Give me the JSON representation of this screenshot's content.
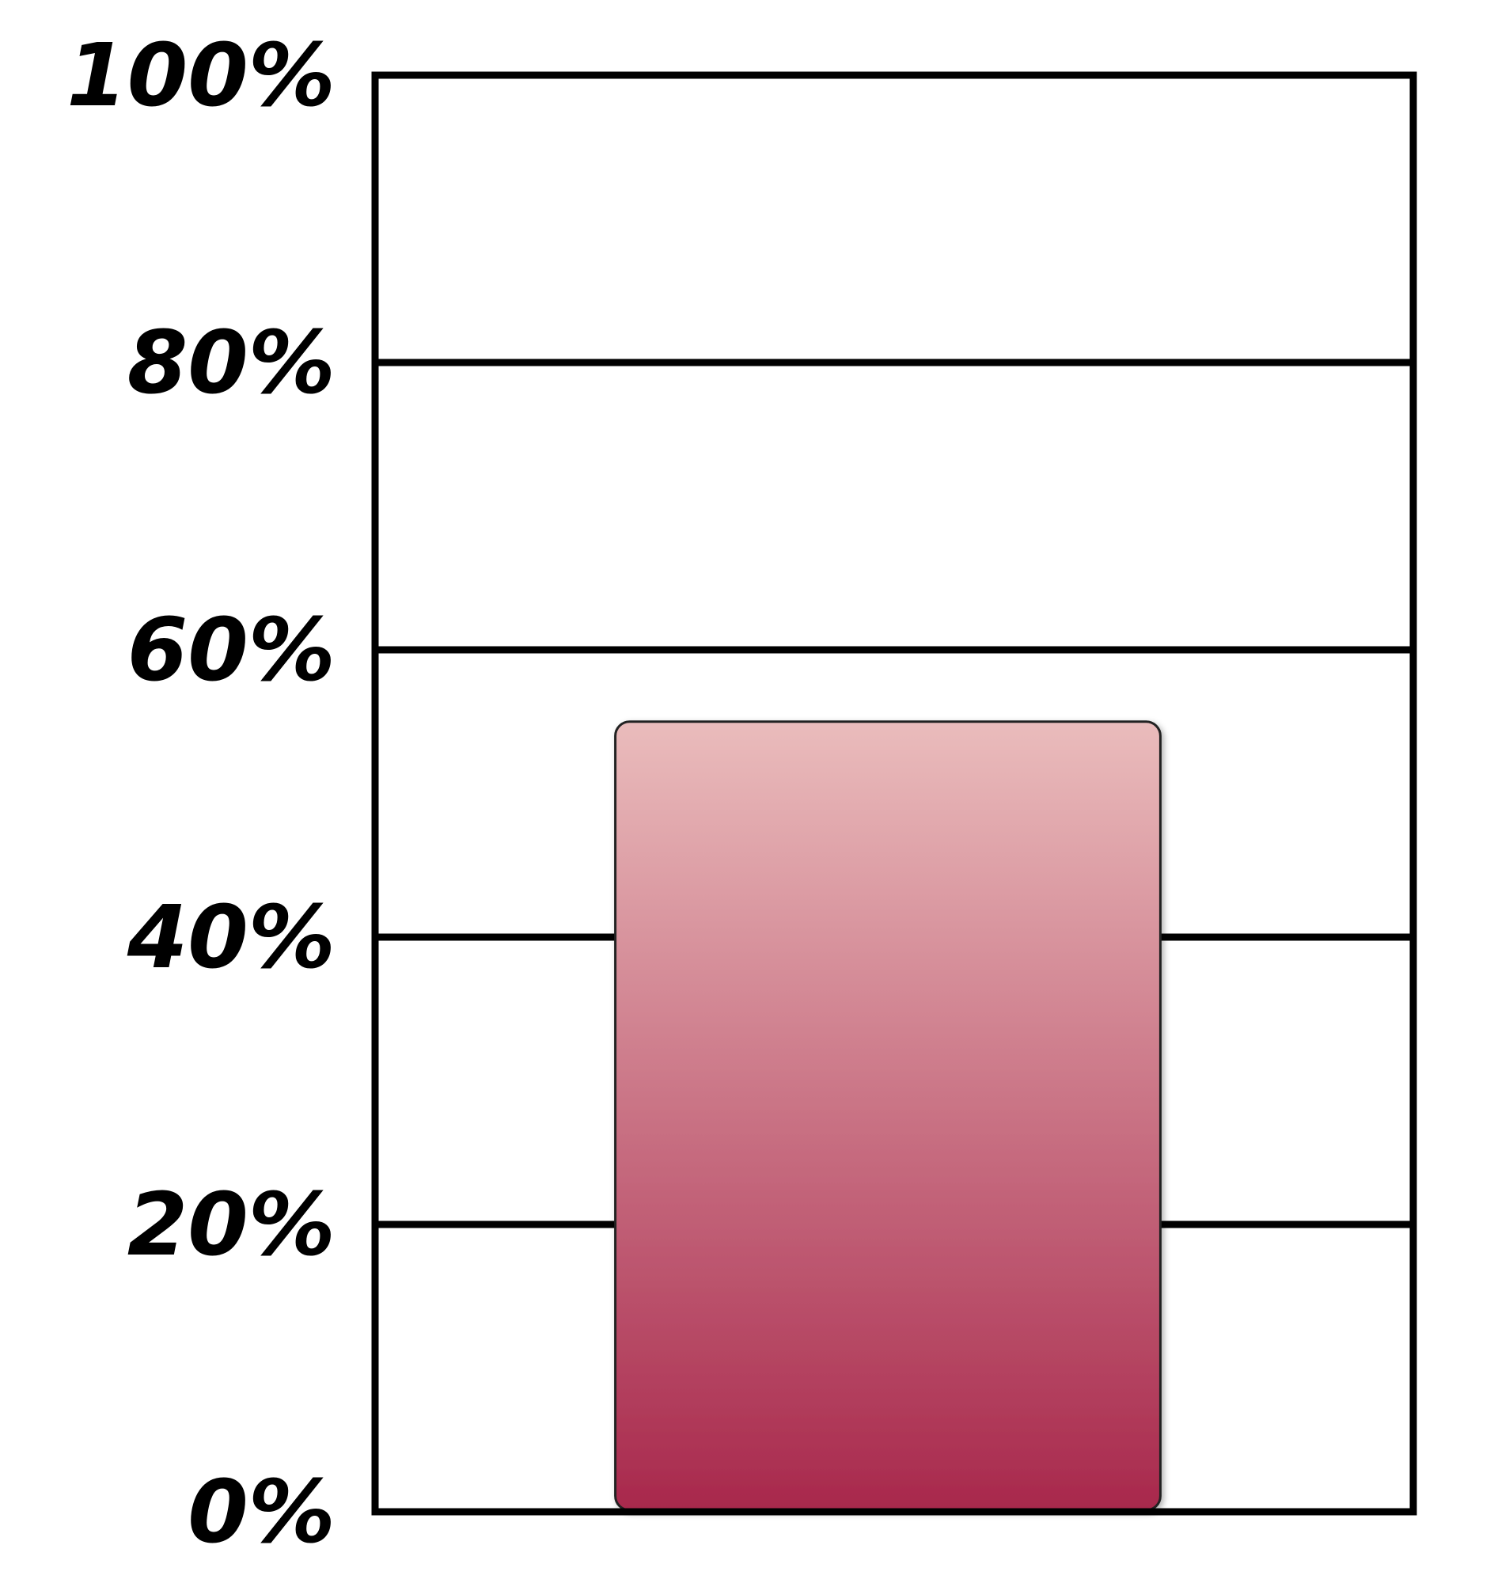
{
  "chart_data": {
    "type": "bar",
    "categories": [
      ""
    ],
    "values": [
      55
    ],
    "ylim": [
      0,
      100
    ],
    "yticks": [
      0,
      20,
      40,
      60,
      80,
      100
    ],
    "ytick_labels": [
      "0%",
      "20%",
      "40%",
      "60%",
      "80%",
      "100%"
    ],
    "grid": true,
    "colors": {
      "bar_top": "#eabcbc",
      "bar_bottom": "#a8284c",
      "axis": "#000000"
    }
  }
}
